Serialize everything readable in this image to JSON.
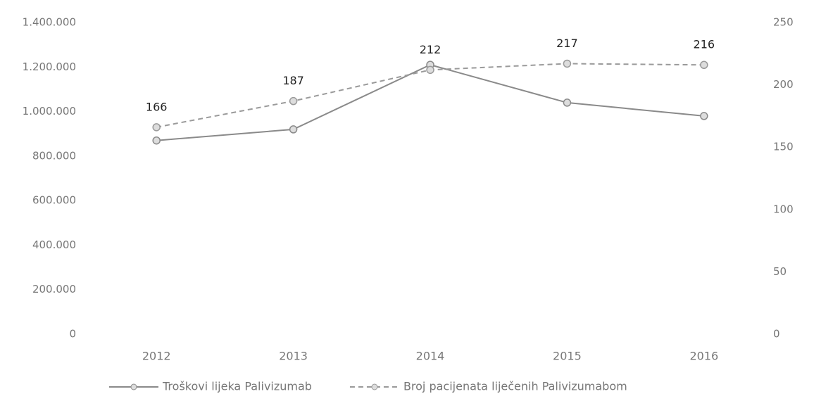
{
  "chart_data": {
    "type": "line",
    "categories": [
      "2012",
      "2013",
      "2014",
      "2015",
      "2016"
    ],
    "series": [
      {
        "name": "Troškovi lijeka Palivizumab",
        "color": "#8a8a8a",
        "dash": false,
        "axis": "y",
        "values": [
          870000,
          920000,
          1210000,
          1040000,
          980000
        ]
      },
      {
        "name": "Broj pacijenata liječenih Palivizumabom",
        "color": "#9a9a9a",
        "dash": true,
        "axis": "y2",
        "values": [
          166,
          187,
          212,
          217,
          216
        ],
        "show_labels": true
      }
    ],
    "ylim": [
      0,
      1400000
    ],
    "yticks": [
      0,
      {
        "value": 200000,
        "label": "200.000"
      },
      {
        "value": 400000,
        "label": "400.000"
      },
      {
        "value": 600000,
        "label": "600.000"
      },
      {
        "value": 800000,
        "label": "800.000"
      },
      {
        "value": 1000000,
        "label": "1.000.000"
      },
      {
        "value": 1200000,
        "label": "1.200.000"
      },
      {
        "value": 1400000,
        "label": "1.400.000"
      }
    ],
    "y2lim": [
      0,
      250
    ],
    "y2ticks": [
      0,
      50,
      100,
      150,
      200,
      250
    ],
    "grid": false,
    "legend": "bottom"
  }
}
